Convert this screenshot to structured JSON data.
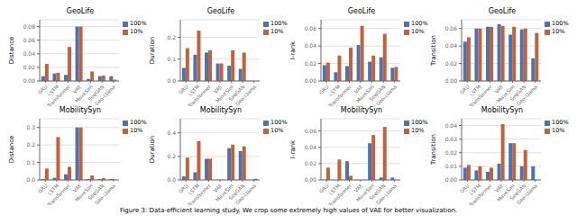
{
  "caption": "Figure 3: Data-efficient learning study. We crop some extremely high values of VAE for better visualization.",
  "chart_data": [
    {
      "type": "bar",
      "title": "GeoLife",
      "y_label": "Distance",
      "categories": [
        "GRU",
        "LSTM",
        "Transformer",
        "VAE",
        "MoveSim",
        "SeqGAN",
        "Geo-Llama"
      ],
      "series": [
        {
          "name": "100%",
          "color": "#4c72b0",
          "values": [
            0.007,
            0.011,
            0.009,
            0.08,
            0.003,
            0.007,
            0.007
          ]
        },
        {
          "name": "10%",
          "color": "#c0623c",
          "values": [
            0.025,
            0.012,
            0.05,
            0.08,
            0.014,
            0.008,
            0.002
          ]
        }
      ],
      "ylim": [
        0,
        0.09
      ],
      "yticks": [
        {
          "value": 0.0,
          "label": "0.00"
        },
        0.02,
        0.04,
        0.06,
        0.08
      ],
      "grid": true,
      "legend": "upper right"
    },
    {
      "type": "bar",
      "title": "GeoLife",
      "y_label": "Duration",
      "categories": [
        "GRU",
        "LSTM",
        "Transformer",
        "VAE",
        "MoveSim",
        "SeqGAN",
        "Geo-Llama"
      ],
      "series": [
        {
          "name": "100%",
          "color": "#4c72b0",
          "values": [
            0.06,
            0.12,
            0.13,
            0.08,
            0.07,
            0.055,
            0.0
          ]
        },
        {
          "name": "10%",
          "color": "#c0623c",
          "values": [
            0.15,
            0.23,
            0.14,
            0.08,
            0.14,
            0.13,
            0.0
          ]
        }
      ],
      "ylim": [
        0,
        0.28
      ],
      "yticks": [
        {
          "value": 0.0,
          "label": "0.0"
        },
        0.1,
        0.2
      ],
      "grid": true,
      "legend": "upper right"
    },
    {
      "type": "bar",
      "title": "GeoLife",
      "y_label": "I-rank",
      "categories": [
        "GRU",
        "LSTM",
        "Transformer",
        "VAE",
        "MoveSim",
        "SeqGAN",
        "Geo-Llama"
      ],
      "series": [
        {
          "name": "100%",
          "color": "#4c72b0",
          "values": [
            0.018,
            0.01,
            0.017,
            0.041,
            0.022,
            0.027,
            0.015
          ]
        },
        {
          "name": "10%",
          "color": "#c0623c",
          "values": [
            0.021,
            0.029,
            0.038,
            0.063,
            0.029,
            0.054,
            0.016
          ]
        }
      ],
      "ylim": [
        0,
        0.07
      ],
      "yticks": [
        {
          "value": 0.0,
          "label": "0.00"
        },
        0.02,
        0.04,
        0.06
      ],
      "grid": true,
      "legend": "upper right"
    },
    {
      "type": "bar",
      "title": "GeoLife",
      "y_label": "Transition",
      "categories": [
        "GRU",
        "LSTM",
        "Transformer",
        "VAE",
        "MoveSim",
        "SeqGAN",
        "Geo-Llama"
      ],
      "series": [
        {
          "name": "100%",
          "color": "#4c72b0",
          "values": [
            0.045,
            0.06,
            0.062,
            0.065,
            0.053,
            0.059,
            0.026
          ]
        },
        {
          "name": "10%",
          "color": "#c0623c",
          "values": [
            0.05,
            0.06,
            0.062,
            0.063,
            0.062,
            0.06,
            0.055
          ]
        }
      ],
      "ylim": [
        0,
        0.07
      ],
      "yticks": [
        {
          "value": 0.0,
          "label": "0.00"
        },
        0.02,
        0.04,
        0.06
      ],
      "grid": true,
      "legend": "upper right"
    },
    {
      "type": "bar",
      "title": "MobilitySyn",
      "y_label": "Distance",
      "categories": [
        "GRU",
        "LSTM",
        "Transformer",
        "VAE",
        "MoveSim",
        "SeqGAN",
        "Geo-Llama"
      ],
      "series": [
        {
          "name": "100%",
          "color": "#4c72b0",
          "values": [
            0.005,
            0.012,
            0.032,
            0.3,
            0.005,
            0.005,
            0.005
          ]
        },
        {
          "name": "10%",
          "color": "#c0623c",
          "values": [
            0.065,
            0.245,
            0.075,
            0.3,
            0.025,
            0.01,
            0.002
          ]
        }
      ],
      "ylim": [
        0,
        0.35
      ],
      "yticks": [
        {
          "value": 0.0,
          "label": "0.0"
        },
        0.1,
        0.2,
        0.3
      ],
      "grid": true,
      "legend": "upper right"
    },
    {
      "type": "bar",
      "title": "MobilitySyn",
      "y_label": "Duration",
      "categories": [
        "GRU",
        "LSTM",
        "Transformer",
        "VAE",
        "MoveSim",
        "SeqGAN",
        "Geo-Llama"
      ],
      "series": [
        {
          "name": "100%",
          "color": "#4c72b0",
          "values": [
            0.03,
            0.065,
            0.18,
            0.0,
            0.27,
            0.245,
            0.0
          ]
        },
        {
          "name": "10%",
          "color": "#c0623c",
          "values": [
            0.19,
            0.33,
            0.18,
            0.0,
            0.3,
            0.285,
            0.01
          ]
        }
      ],
      "ylim": [
        0,
        0.52
      ],
      "yticks": [
        {
          "value": 0.0,
          "label": "0.0"
        },
        0.2,
        0.4
      ],
      "grid": true,
      "legend": "upper right"
    },
    {
      "type": "bar",
      "title": "MobilitySyn",
      "y_label": "I-rank",
      "categories": [
        "GRU",
        "LSTM",
        "Transformer",
        "VAE",
        "MoveSim",
        "SeqGAN",
        "Geo-Llama"
      ],
      "series": [
        {
          "name": "100%",
          "color": "#4c72b0",
          "values": [
            0.0,
            0.0,
            0.023,
            0.0,
            0.045,
            0.003,
            0.003
          ]
        },
        {
          "name": "10%",
          "color": "#c0623c",
          "values": [
            0.015,
            0.025,
            0.005,
            0.0,
            0.055,
            0.065,
            0.0
          ]
        }
      ],
      "ylim": [
        0,
        0.075
      ],
      "yticks": [
        {
          "value": 0.0,
          "label": "0.00"
        },
        0.02,
        0.04,
        0.06
      ],
      "grid": true,
      "legend": "upper right"
    },
    {
      "type": "bar",
      "title": "MobilitySyn",
      "y_label": "Transition",
      "categories": [
        "GRU",
        "LSTM",
        "Transformer",
        "VAE",
        "MoveSim",
        "SeqGAN",
        "Geo-Llama"
      ],
      "series": [
        {
          "name": "100%",
          "color": "#4c72b0",
          "values": [
            0.009,
            0.007,
            0.006,
            0.012,
            0.027,
            0.01,
            0.01
          ]
        },
        {
          "name": "10%",
          "color": "#c0623c",
          "values": [
            0.011,
            0.01,
            0.009,
            0.041,
            0.027,
            0.022,
            0.0
          ]
        }
      ],
      "ylim": [
        0,
        0.045
      ],
      "yticks": [
        {
          "value": 0.0,
          "label": "0.00"
        },
        0.01,
        0.02,
        0.03,
        0.04
      ],
      "grid": true,
      "legend": "upper right"
    }
  ]
}
